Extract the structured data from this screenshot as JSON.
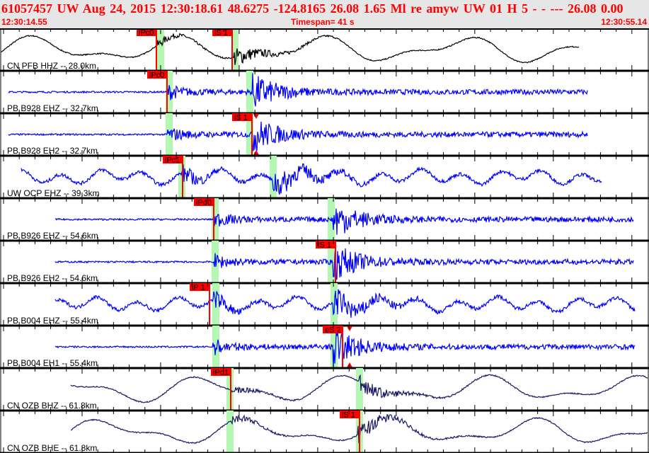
{
  "header": {
    "title": "61057457 UW Aug 24, 2015 12:30:18.61    48.6275 -124.8165 26.08 1.65 Ml re     amyw     UW 01 H     5   -    - --- 26.08 0.00",
    "start_time": "12:30:14.55",
    "timespan": "Timespan=  41 s",
    "end_time": "12:30:55.14"
  },
  "colors": {
    "header_bg": "#e6e6e6",
    "header_text": "#ff0000",
    "pick_flag": "#ff0000",
    "pick_window": "#b3f7b3",
    "trace_blue": "#0000ff",
    "trace_navy": "#1a1a66",
    "trace_black": "#000000"
  },
  "traces": [
    {
      "label": "CN PFB HHZ -- 28.0km",
      "kind": "broadband",
      "color": "#000000",
      "picks": [
        {
          "label": "iPc0"
        },
        {
          "label": "iS 1"
        }
      ]
    },
    {
      "label": "PB B928 EHZ -- 32.7km",
      "kind": "short-period",
      "color": "#0000ff",
      "picks": [
        {
          "label": "iPc0"
        }
      ]
    },
    {
      "label": "PB B928 EH2 -- 32.7km",
      "kind": "short-period",
      "color": "#0000ff",
      "picks": [
        {
          "label": "iS 1"
        }
      ]
    },
    {
      "label": "UW OCP EHZ -- 39.3km",
      "kind": "noisy",
      "color": "#0000ff",
      "picks": [
        {
          "label": "iPc1"
        }
      ]
    },
    {
      "label": "PB B926 EHZ -- 54.6km",
      "kind": "short-period",
      "color": "#0000ff",
      "picks": [
        {
          "label": "iPd0"
        }
      ]
    },
    {
      "label": "PB B926 EH2 -- 54.6km",
      "kind": "short-period",
      "color": "#0000ff",
      "picks": [
        {
          "label": "iS 1"
        }
      ]
    },
    {
      "label": "PB B004 EHZ -- 55.4km",
      "kind": "noisy",
      "color": "#0000ff",
      "picks": [
        {
          "label": "iP 1"
        }
      ]
    },
    {
      "label": "PB B004 EH1 -- 55.4km",
      "kind": "short-period",
      "color": "#0000ff",
      "picks": [
        {
          "label": "eS 2"
        }
      ]
    },
    {
      "label": "CN OZB BHZ -- 61.8km",
      "kind": "broadband",
      "color": "#1a1a66",
      "picks": [
        {
          "label": "iPd1"
        }
      ]
    },
    {
      "label": "CN OZB BHE -- 61.8km",
      "kind": "broadband",
      "color": "#1a1a66",
      "picks": [
        {
          "label": "iS 1"
        }
      ]
    }
  ]
}
